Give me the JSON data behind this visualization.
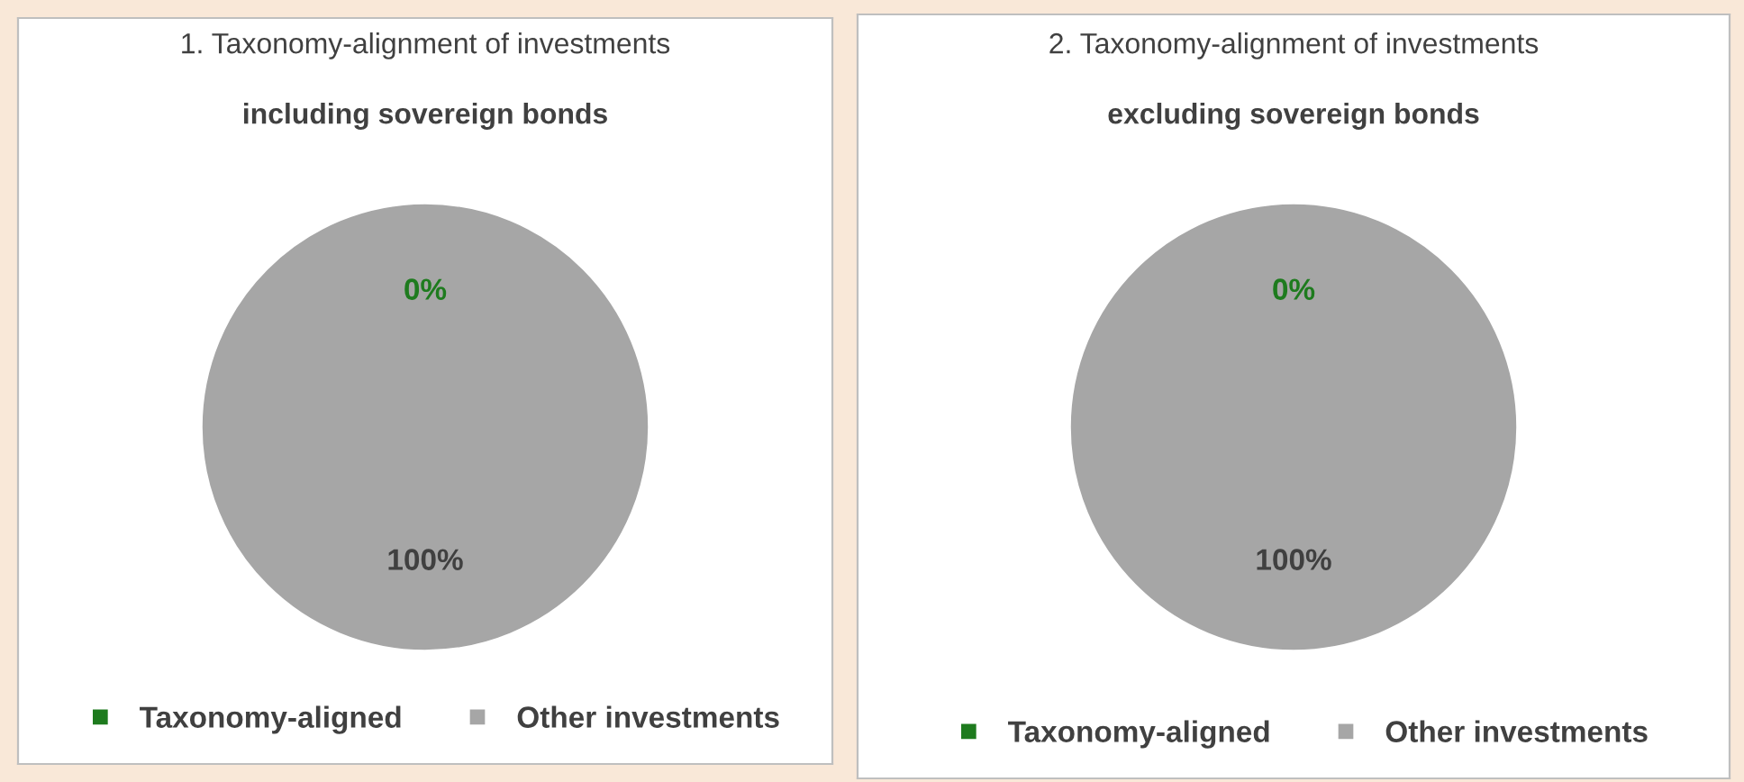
{
  "chart_data": [
    {
      "type": "pie",
      "title": "1. Taxonomy-alignment of investments",
      "subtitle": "including sovereign bonds",
      "categories": [
        "Taxonomy-aligned",
        "Other investments"
      ],
      "values": [
        0,
        100
      ],
      "colors": [
        "#1e7b1e",
        "#a6a6a6"
      ],
      "value_labels": [
        "0%",
        "100%"
      ],
      "legend": "bottom"
    },
    {
      "type": "pie",
      "title": "2. Taxonomy-alignment of investments",
      "subtitle": "excluding sovereign bonds",
      "categories": [
        "Taxonomy-aligned",
        "Other investments"
      ],
      "values": [
        0,
        100
      ],
      "colors": [
        "#1e7b1e",
        "#a6a6a6"
      ],
      "value_labels": [
        "0%",
        "100%"
      ],
      "legend": "bottom"
    }
  ]
}
